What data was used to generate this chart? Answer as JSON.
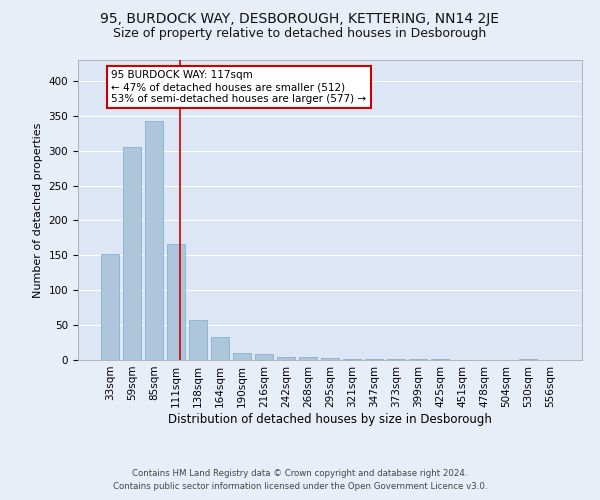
{
  "title": "95, BURDOCK WAY, DESBOROUGH, KETTERING, NN14 2JE",
  "subtitle": "Size of property relative to detached houses in Desborough",
  "xlabel": "Distribution of detached houses by size in Desborough",
  "ylabel": "Number of detached properties",
  "categories": [
    "33sqm",
    "59sqm",
    "85sqm",
    "111sqm",
    "138sqm",
    "164sqm",
    "190sqm",
    "216sqm",
    "242sqm",
    "268sqm",
    "295sqm",
    "321sqm",
    "347sqm",
    "373sqm",
    "399sqm",
    "425sqm",
    "451sqm",
    "478sqm",
    "504sqm",
    "530sqm",
    "556sqm"
  ],
  "values": [
    152,
    305,
    343,
    166,
    57,
    33,
    10,
    8,
    5,
    4,
    3,
    2,
    2,
    1,
    1,
    1,
    0,
    0,
    0,
    2,
    0
  ],
  "bar_color": "#aec6dc",
  "bar_edgecolor": "#7aaac8",
  "annotation_text": "95 BURDOCK WAY: 117sqm\n← 47% of detached houses are smaller (512)\n53% of semi-detached houses are larger (577) →",
  "annotation_box_color": "#ffffff",
  "annotation_box_edgecolor": "#cc0000",
  "vline_color": "#cc0000",
  "background_color": "#e8eef8",
  "plot_bg_color": "#dce6f4",
  "grid_color": "#ffffff",
  "footer_line1": "Contains HM Land Registry data © Crown copyright and database right 2024.",
  "footer_line2": "Contains public sector information licensed under the Open Government Licence v3.0.",
  "ylim": [
    0,
    430
  ],
  "title_fontsize": 10,
  "subtitle_fontsize": 9,
  "xlabel_fontsize": 8.5,
  "ylabel_fontsize": 8,
  "tick_fontsize": 7.5,
  "annotation_fontsize": 7.5,
  "footer_fontsize": 6.2,
  "vline_pos": 3.17
}
